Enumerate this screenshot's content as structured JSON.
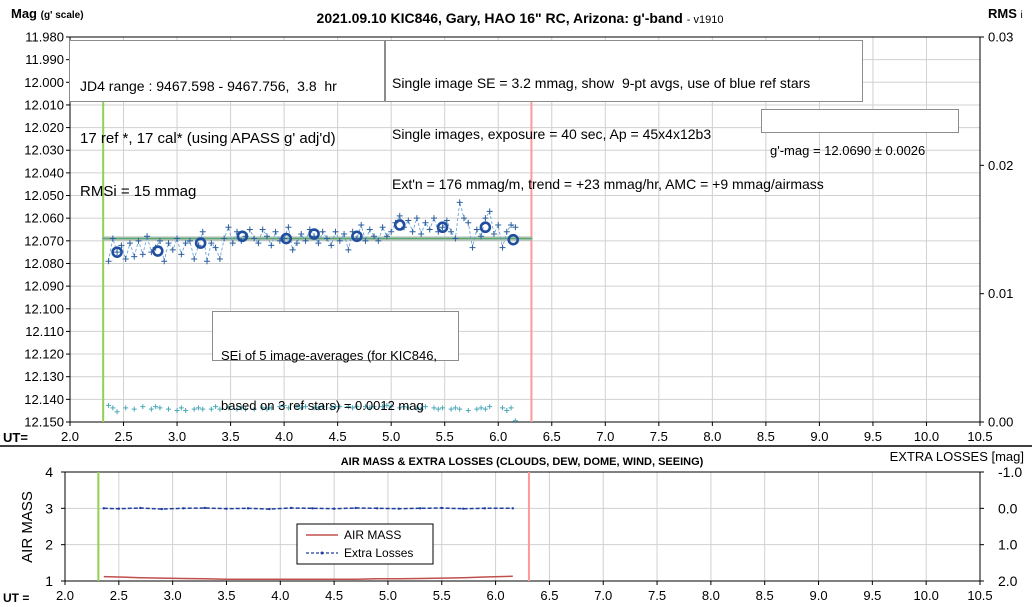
{
  "chart_data": [
    {
      "type": "scatter",
      "title": "2021.09.10 KIC846, Gary, HAO 16\" RC, Arizona: g'-band",
      "title_suffix": "- v1910",
      "ylabel": "Mag",
      "ylabel_suffix": "(g' scale)",
      "y2label": "RMS",
      "y2label_suffix": "i",
      "xlabel": "UT=",
      "xlim": [
        2.0,
        10.5
      ],
      "ylim": [
        11.98,
        12.15
      ],
      "y_reversed": true,
      "y2lim": [
        0.0,
        0.03
      ],
      "x_ticks": [
        "2.0",
        "2.5",
        "3.0",
        "3.5",
        "4.0",
        "4.5",
        "5.0",
        "5.5",
        "6.0",
        "6.5",
        "7.0",
        "7.5",
        "8.0",
        "8.5",
        "9.0",
        "9.5",
        "10.0",
        "10.5"
      ],
      "y_ticks": [
        "11.980",
        "11.990",
        "12.000",
        "12.010",
        "12.020",
        "12.030",
        "12.040",
        "12.050",
        "12.060",
        "12.070",
        "12.080",
        "12.090",
        "12.100",
        "12.110",
        "12.120",
        "12.130",
        "12.140",
        "12.150"
      ],
      "y2_ticks": [
        "0.00",
        "0.01",
        "0.02",
        "0.03"
      ],
      "vertical_lines_ut": [
        2.31,
        6.31
      ],
      "vertical_line_colors": [
        "#92d050",
        "#ff9999"
      ],
      "mean_mag": 12.069,
      "mean_line_range_ut": [
        2.3,
        6.32
      ],
      "series": [
        {
          "name": "",
          "style": "cross-dashed",
          "color": "#2e5f9e",
          "x": [
            2.36,
            2.4,
            2.44,
            2.48,
            2.52,
            2.56,
            2.6,
            2.64,
            2.68,
            2.72,
            2.76,
            2.8,
            2.84,
            2.88,
            2.92,
            2.96,
            3.0,
            3.04,
            3.08,
            3.12,
            3.16,
            3.2,
            3.24,
            3.28,
            3.32,
            3.36,
            3.4,
            3.44,
            3.48,
            3.52,
            3.56,
            3.6,
            3.64,
            3.68,
            3.72,
            3.76,
            3.8,
            3.84,
            3.88,
            3.92,
            3.96,
            4.0,
            4.04,
            4.08,
            4.12,
            4.16,
            4.2,
            4.24,
            4.28,
            4.32,
            4.36,
            4.4,
            4.44,
            4.48,
            4.52,
            4.56,
            4.6,
            4.64,
            4.68,
            4.72,
            4.76,
            4.8,
            4.84,
            4.88,
            4.92,
            4.96,
            5.0,
            5.04,
            5.08,
            5.12,
            5.16,
            5.2,
            5.24,
            5.28,
            5.32,
            5.36,
            5.4,
            5.44,
            5.48,
            5.52,
            5.56,
            5.6,
            5.64,
            5.68,
            5.72,
            5.76,
            5.8,
            5.84,
            5.88,
            5.92,
            5.96,
            6.0,
            6.04,
            6.08,
            6.12,
            6.16
          ],
          "values": [
            12.079,
            12.069,
            12.075,
            12.072,
            12.078,
            12.071,
            12.077,
            12.07,
            12.076,
            12.068,
            12.075,
            12.073,
            12.07,
            12.079,
            12.071,
            12.074,
            12.069,
            12.076,
            12.071,
            12.07,
            12.078,
            12.072,
            12.066,
            12.079,
            12.071,
            12.073,
            12.078,
            12.069,
            12.064,
            12.071,
            12.066,
            12.07,
            12.068,
            12.065,
            12.069,
            12.071,
            12.065,
            12.068,
            12.072,
            12.066,
            12.07,
            12.069,
            12.064,
            12.074,
            12.071,
            12.067,
            12.07,
            12.065,
            12.068,
            12.071,
            12.066,
            12.069,
            12.072,
            12.066,
            12.07,
            12.067,
            12.074,
            12.066,
            12.069,
            12.063,
            12.07,
            12.065,
            12.068,
            12.07,
            12.064,
            12.068,
            12.066,
            12.062,
            12.059,
            12.064,
            12.061,
            12.066,
            12.06,
            12.067,
            12.062,
            12.065,
            12.06,
            12.066,
            12.064,
            12.061,
            12.066,
            12.069,
            12.053,
            12.06,
            12.062,
            12.073,
            12.065,
            12.068,
            12.06,
            12.057,
            12.067,
            12.063,
            12.073,
            12.066,
            12.063,
            12.064
          ]
        },
        {
          "name": "",
          "style": "circle",
          "color": "#1f4e9e",
          "x": [
            2.44,
            2.82,
            3.22,
            3.61,
            4.02,
            4.28,
            4.68,
            5.08,
            5.48,
            5.88,
            6.14
          ],
          "values": [
            12.075,
            12.0745,
            12.071,
            12.068,
            12.069,
            12.067,
            12.068,
            12.063,
            12.064,
            12.064,
            12.0695
          ]
        },
        {
          "name": "",
          "style": "cross-rms",
          "color": "#4aa8b8",
          "axis": "y2",
          "x": [
            2.36,
            2.4,
            2.44,
            2.52,
            2.6,
            2.68,
            2.76,
            2.8,
            2.84,
            2.92,
            3.0,
            3.04,
            3.08,
            3.16,
            3.2,
            3.24,
            3.32,
            3.36,
            3.4,
            3.48,
            3.56,
            3.6,
            3.64,
            3.72,
            3.8,
            3.84,
            3.88,
            3.96,
            4.0,
            4.04,
            4.12,
            4.16,
            4.2,
            4.28,
            4.32,
            4.36,
            4.44,
            4.48,
            4.52,
            4.6,
            4.64,
            4.68,
            4.76,
            4.8,
            4.84,
            4.92,
            4.96,
            5.0,
            5.08,
            5.12,
            5.16,
            5.24,
            5.28,
            5.32,
            5.4,
            5.44,
            5.48,
            5.56,
            5.6,
            5.64,
            5.72,
            5.8,
            5.84,
            5.88,
            5.92,
            6.04,
            6.08,
            6.12,
            6.16
          ],
          "values": [
            0.0013,
            0.0011,
            0.0008,
            0.0011,
            0.001,
            0.0012,
            0.001,
            0.0012,
            0.0011,
            0.001,
            0.0009,
            0.0011,
            0.0009,
            0.001,
            0.0011,
            0.001,
            0.001,
            0.0012,
            0.001,
            0.0011,
            0.001,
            0.0011,
            0.001,
            0.001,
            0.0011,
            0.001,
            0.0011,
            0.0012,
            0.0013,
            0.0011,
            0.0012,
            0.0011,
            0.0012,
            0.0011,
            0.0011,
            0.0012,
            0.0011,
            0.0012,
            0.0012,
            0.0012,
            0.0011,
            0.0012,
            0.0012,
            0.0011,
            0.0012,
            0.0012,
            0.0013,
            0.0012,
            0.0011,
            0.0012,
            0.0011,
            0.0011,
            0.001,
            0.0012,
            0.0011,
            0.001,
            0.0011,
            0.001,
            0.0011,
            0.001,
            0.0009,
            0.001,
            0.0011,
            0.001,
            0.0012,
            0.0011,
            0.0009,
            0.0011,
            0.0001
          ]
        }
      ],
      "info_box_left": [
        "JD4 range : 9467.598 - 9467.756,  3.8  hr",
        "17 ref *, 17 cal* (using APASS g' adj'd)",
        "RMSi = 15 mmag"
      ],
      "info_box_right": [
        "Single image SE = 3.2 mmag, show  9-pt avgs, use of blue ref stars",
        "Single images, exposure = 40 sec, Ap = 45x4x12b3",
        "Ext'n = 176 mmag/m, trend = +23 mmag/hr, AMC = +9 mmag/airmass"
      ],
      "gmag_box": "g'-mag = 12.0690 ± 0.0026",
      "sei_box": [
        "SEi of 5 image-averages (for KIC846,",
        "based on 3 ref stars) = 0.0012 mag"
      ]
    },
    {
      "type": "line",
      "title": "AIR MASS & EXTRA LOSSES (CLOUDS, DEW, DOME, WIND, SEEING)",
      "ylabel": "AIR MASS",
      "y2label": "EXTRA LOSSES [mag]",
      "xlabel": "UT =",
      "xlim": [
        2.0,
        10.5
      ],
      "ylim": [
        1,
        4
      ],
      "y2lim": [
        -1.0,
        2.0
      ],
      "y2_reversed": true,
      "x_ticks": [
        "2.0",
        "2.5",
        "3.0",
        "3.5",
        "4.0",
        "4.5",
        "5.0",
        "5.5",
        "6.0",
        "6.5",
        "7.0",
        "7.5",
        "8.0",
        "8.5",
        "9.0",
        "9.5",
        "10.0",
        "10.5"
      ],
      "y_ticks": [
        "1",
        "2",
        "3",
        "4"
      ],
      "y2_ticks": [
        "-1.0",
        "0.0",
        "1.0",
        "2.0"
      ],
      "vertical_lines_ut": [
        2.31,
        6.31
      ],
      "vertical_line_colors": [
        "#92d050",
        "#ff9999"
      ],
      "series": [
        {
          "name": "AIR MASS",
          "color": "#c0504d",
          "x": [
            2.36,
            2.5,
            2.7,
            2.9,
            3.1,
            3.3,
            3.5,
            3.7,
            3.9,
            4.1,
            4.3,
            4.5,
            4.7,
            4.9,
            5.1,
            5.3,
            5.5,
            5.7,
            5.9,
            6.16
          ],
          "values": [
            1.12,
            1.11,
            1.09,
            1.08,
            1.07,
            1.06,
            1.05,
            1.05,
            1.05,
            1.05,
            1.05,
            1.05,
            1.05,
            1.06,
            1.06,
            1.07,
            1.08,
            1.09,
            1.11,
            1.13
          ]
        },
        {
          "name": "Extra Losses",
          "color": "#1f3fa0",
          "x": [
            2.36,
            2.5,
            2.7,
            2.9,
            3.1,
            3.3,
            3.5,
            3.7,
            3.9,
            4.1,
            4.3,
            4.5,
            4.7,
            4.9,
            5.1,
            5.3,
            5.5,
            5.7,
            5.9,
            6.16
          ],
          "values": [
            0.0,
            0.01,
            -0.01,
            0.02,
            0.0,
            -0.01,
            0.01,
            0.0,
            0.02,
            -0.01,
            0.0,
            0.01,
            -0.01,
            0.0,
            0.01,
            0.0,
            -0.01,
            0.01,
            0.0,
            0.0
          ]
        }
      ]
    }
  ]
}
